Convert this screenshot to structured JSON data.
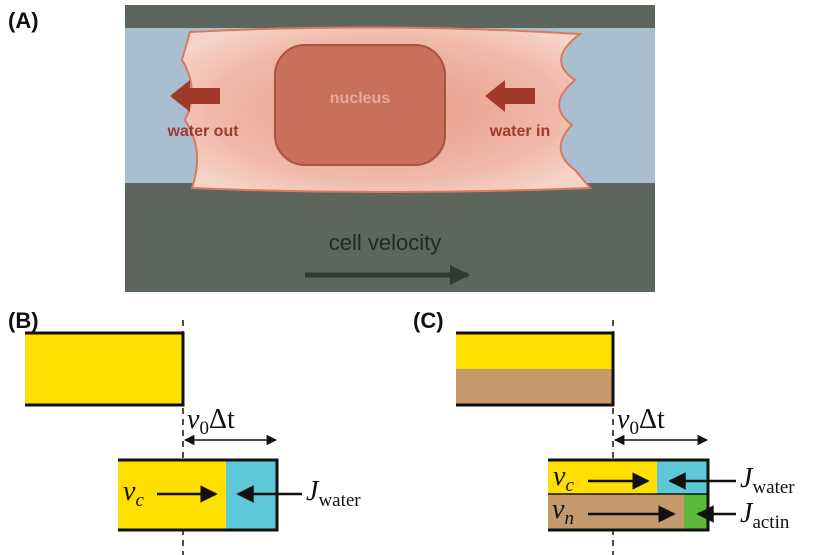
{
  "panel_a": {
    "label": "(A)",
    "nucleus": "nucleus",
    "water_out": "water out",
    "water_in": "water in",
    "velocity": "cell velocity"
  },
  "panel_b": {
    "label": "(B)",
    "shift": {
      "symbol": "v",
      "sub": "0",
      "rest": "Δt"
    },
    "vc": {
      "symbol": "v",
      "sub": "c"
    },
    "jwater": {
      "symbol": "J",
      "sub": "water"
    }
  },
  "panel_c": {
    "label": "(C)",
    "shift": {
      "symbol": "v",
      "sub": "0",
      "rest": "Δt"
    },
    "vc": {
      "symbol": "v",
      "sub": "c"
    },
    "vn": {
      "symbol": "v",
      "sub": "n"
    },
    "jwater": {
      "symbol": "J",
      "sub": "water"
    },
    "jactin": {
      "symbol": "J",
      "sub": "actin"
    }
  }
}
